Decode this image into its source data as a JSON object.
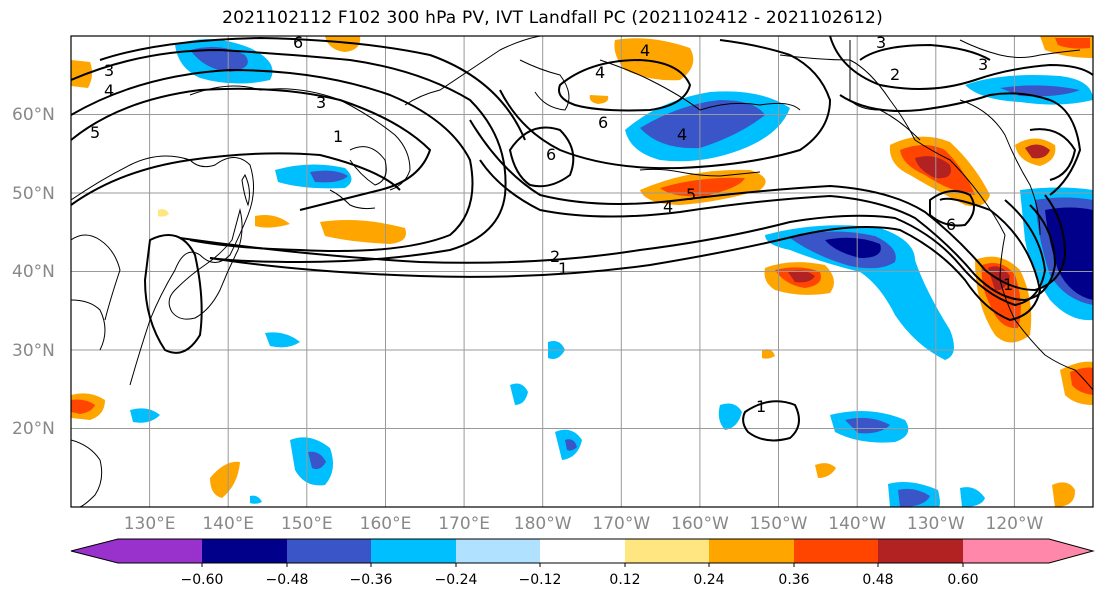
{
  "title": "2021102112 F102 300 hPa PV, IVT Landfall PC (2021102412 - 2021102612)",
  "map": {
    "projection": "cylindrical",
    "lon_range_east": [
      120,
      250
    ],
    "lat_range": [
      10,
      70
    ],
    "lat_labels": [
      "20°N",
      "30°N",
      "40°N",
      "50°N",
      "60°N"
    ],
    "lon_labels": [
      "130°E",
      "140°E",
      "150°E",
      "160°E",
      "170°E",
      "180°W",
      "170°W",
      "160°W",
      "150°W",
      "140°W",
      "130°W",
      "120°W"
    ],
    "contour_labels": [
      "6",
      "3",
      "4",
      "5",
      "3",
      "1",
      "6",
      "4",
      "6",
      "5",
      "4",
      "2",
      "1",
      "2",
      "3",
      "6",
      "1",
      "4",
      "4",
      "3",
      "1"
    ]
  },
  "colorbar": {
    "ticks": [
      "−0.60",
      "−0.48",
      "−0.36",
      "−0.24",
      "−0.12",
      "0.12",
      "0.24",
      "0.36",
      "0.48",
      "0.60"
    ],
    "colors": [
      "#9932cc",
      "#00008b",
      "#3a55c8",
      "#00bfff",
      "#b0e2ff",
      "#ffffff",
      "#ffe680",
      "#ffa500",
      "#ff4500",
      "#b22222",
      "#ff88aa"
    ]
  }
}
